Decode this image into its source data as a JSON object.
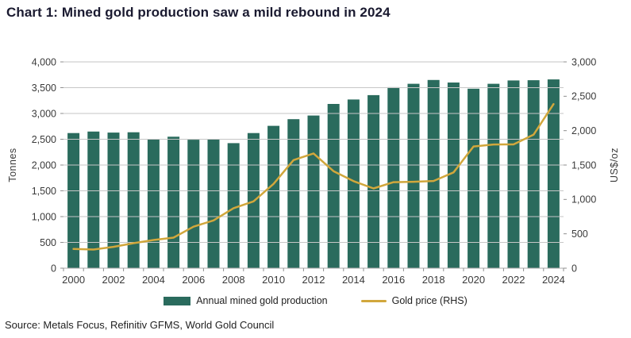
{
  "page": {
    "title": "Chart 1: Mined gold production saw a mild rebound in 2024",
    "source": "Source: Metals Focus, Refinitiv GFMS, World Gold Council"
  },
  "legend": {
    "bar_label": "Annual mined gold production",
    "line_label": "Gold price (RHS)"
  },
  "colors": {
    "bar": "#2a6b5d",
    "line": "#d1a73c",
    "grid": "#c6c6c6",
    "baseline": "#adadad",
    "tick": "#8f8f8f",
    "title_text": "#1a1a30"
  },
  "chart_data": {
    "type": "bar+line",
    "title": "Chart 1: Mined gold production saw a mild rebound in 2024",
    "grid": true,
    "legend_position": "bottom",
    "x": [
      2000,
      2001,
      2002,
      2003,
      2004,
      2005,
      2006,
      2007,
      2008,
      2009,
      2010,
      2011,
      2012,
      2013,
      2014,
      2015,
      2016,
      2017,
      2018,
      2019,
      2020,
      2021,
      2022,
      2023,
      2024
    ],
    "x_tick_labels": [
      "2000",
      "2002",
      "2004",
      "2006",
      "2008",
      "2010",
      "2012",
      "2014",
      "2016",
      "2018",
      "2020",
      "2022",
      "2024"
    ],
    "series": [
      {
        "name": "Annual mined gold production",
        "type": "bar",
        "axis": "left",
        "values": [
          2620,
          2650,
          2630,
          2635,
          2505,
          2550,
          2490,
          2495,
          2425,
          2620,
          2760,
          2890,
          2960,
          3185,
          3270,
          3355,
          3510,
          3575,
          3650,
          3600,
          3480,
          3575,
          3640,
          3645,
          3660
        ]
      },
      {
        "name": "Gold price (RHS)",
        "type": "line",
        "axis": "right",
        "values": [
          279,
          271,
          310,
          363,
          410,
          444,
          604,
          695,
          872,
          972,
          1225,
          1572,
          1669,
          1411,
          1266,
          1160,
          1251,
          1257,
          1268,
          1393,
          1770,
          1799,
          1800,
          1941,
          2386
        ]
      }
    ],
    "left_axis": {
      "label": "Tonnes",
      "min": 0,
      "max": 4000,
      "step": 500,
      "tick_labels": [
        "0",
        "500",
        "1,000",
        "1,500",
        "2,000",
        "2,500",
        "3,000",
        "3,500",
        "4,000"
      ]
    },
    "right_axis": {
      "label": "US$/oz",
      "min": 0,
      "max": 3000,
      "step": 500,
      "tick_labels": [
        "0",
        "500",
        "1,000",
        "1,500",
        "2,000",
        "2,500",
        "3,000"
      ]
    }
  }
}
